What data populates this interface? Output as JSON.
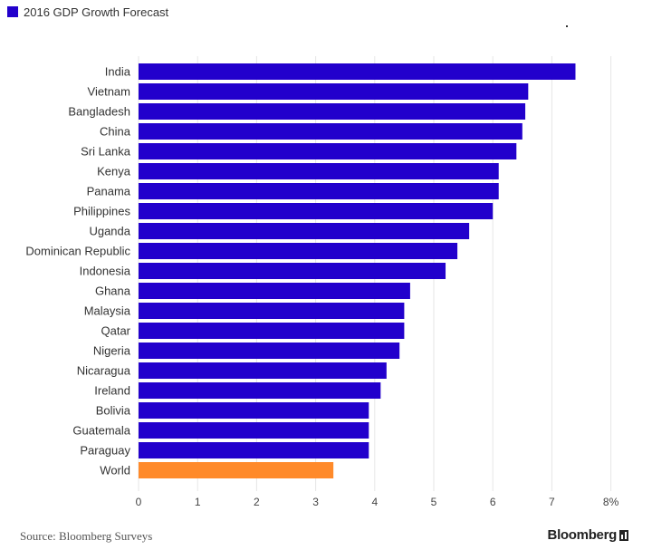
{
  "legend": {
    "label": "2016 GDP Growth Forecast"
  },
  "footer": {
    "source": "Source: Bloomberg Surveys",
    "brand": "Bloomberg"
  },
  "colors": {
    "primary": "#2200cc",
    "highlight": "#ff8a2a",
    "grid": "#e6e6e6",
    "text": "#333333"
  },
  "chart_data": {
    "type": "bar",
    "orientation": "horizontal",
    "series": [
      {
        "name": "2016 GDP Growth Forecast"
      }
    ],
    "categories": [
      "India",
      "Vietnam",
      "Bangladesh",
      "China",
      "Sri Lanka",
      "Kenya",
      "Panama",
      "Philippines",
      "Uganda",
      "Dominican Republic",
      "Indonesia",
      "Ghana",
      "Malaysia",
      "Qatar",
      "Nigeria",
      "Nicaragua",
      "Ireland",
      "Bolivia",
      "Guatemala",
      "Paraguay",
      "World"
    ],
    "values": [
      7.4,
      6.6,
      6.55,
      6.5,
      6.4,
      6.1,
      6.1,
      6.0,
      5.6,
      5.4,
      5.2,
      4.6,
      4.5,
      4.5,
      4.42,
      4.2,
      4.1,
      3.9,
      3.9,
      3.9,
      3.3
    ],
    "highlight_category": "World",
    "xlim": [
      0,
      8
    ],
    "x_ticks": [
      "0",
      "1",
      "2",
      "3",
      "4",
      "5",
      "6",
      "7",
      "8%"
    ],
    "grid": true,
    "legend_position": "top-left"
  }
}
